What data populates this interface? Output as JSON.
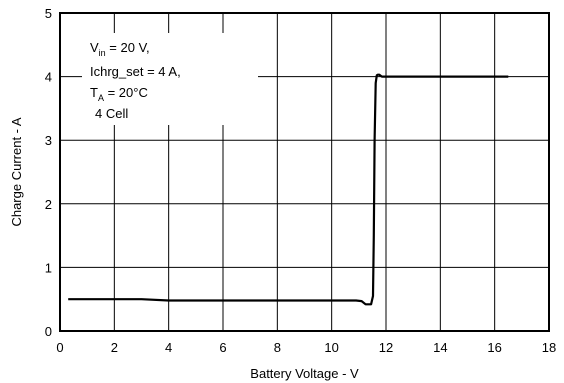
{
  "chart_data": {
    "type": "line",
    "xlabel": "Battery Voltage - V",
    "ylabel": "Charge Current - A",
    "xlim": [
      0,
      18
    ],
    "ylim": [
      0,
      5
    ],
    "x_ticks": [
      0,
      2,
      4,
      6,
      8,
      10,
      12,
      14,
      16,
      18
    ],
    "y_ticks": [
      0,
      1,
      2,
      3,
      4,
      5
    ],
    "grid": true,
    "annotations": {
      "line1_main": "V",
      "line1_sub": "in",
      "line1_rest": " = 20 V,",
      "line2": "Ichrg_set = 4 A,",
      "line3_main": "T",
      "line3_sub": "A",
      "line3_rest": " = 20°C",
      "line4": "4 Cell"
    },
    "series": [
      {
        "x": [
          0.3,
          3.0,
          4.0,
          10.9,
          11.1,
          11.25,
          11.45,
          11.52,
          11.55,
          11.58,
          11.62,
          11.66,
          11.7,
          11.75,
          11.85,
          12.2,
          14.0,
          16.5
        ],
        "y": [
          0.5,
          0.5,
          0.48,
          0.48,
          0.47,
          0.42,
          0.42,
          0.55,
          1.5,
          3.0,
          3.9,
          4.02,
          4.03,
          4.03,
          4.0,
          4.0,
          4.0,
          4.0
        ]
      }
    ]
  }
}
